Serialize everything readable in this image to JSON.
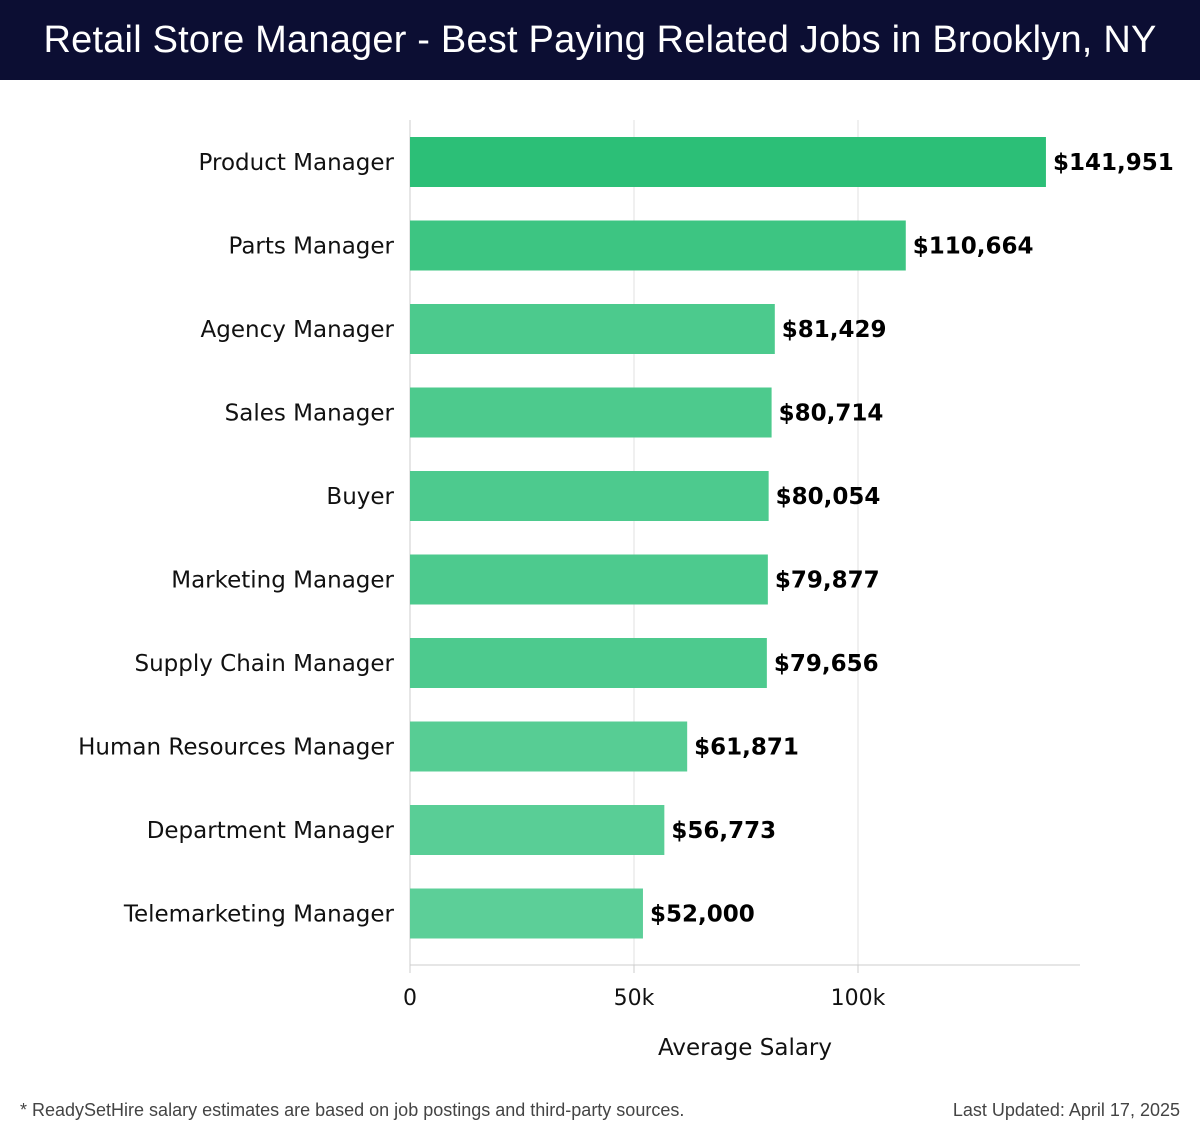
{
  "header": {
    "title": "Retail Store Manager - Best Paying Related Jobs in Brooklyn, NY"
  },
  "chart_data": {
    "type": "bar",
    "orientation": "horizontal",
    "title": "Retail Store Manager - Best Paying Related Jobs in Brooklyn, NY",
    "xlabel": "Average Salary",
    "ylabel": "",
    "xlim": [
      0,
      150000
    ],
    "xticks": [
      {
        "value": 0,
        "label": "0"
      },
      {
        "value": 50000,
        "label": "50k"
      },
      {
        "value": 100000,
        "label": "100k"
      }
    ],
    "grid": true,
    "categories": [
      "Product Manager",
      "Parts Manager",
      "Agency Manager",
      "Sales Manager",
      "Buyer",
      "Marketing Manager",
      "Supply Chain Manager",
      "Human Resources Manager",
      "Department Manager",
      "Telemarketing Manager"
    ],
    "values": [
      141951,
      110664,
      81429,
      80714,
      80054,
      79877,
      79656,
      61871,
      56773,
      52000
    ],
    "value_labels": [
      "$141,951",
      "$110,664",
      "$81,429",
      "$80,714",
      "$80,054",
      "$79,877",
      "$79,656",
      "$61,871",
      "$56,773",
      "$52,000"
    ],
    "colors": {
      "bar_max": "#2cbf77",
      "bar_min": "#5ccf98",
      "grid": "#e2e2e2",
      "axis": "#cccccc"
    }
  },
  "footer": {
    "note": "* ReadySetHire salary estimates are based on job postings and third-party sources.",
    "updated": "Last Updated: April 17, 2025"
  }
}
